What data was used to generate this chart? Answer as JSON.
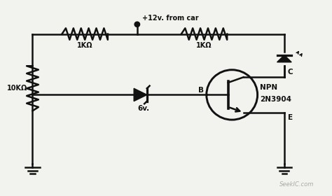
{
  "bg_color": "#f2f2ee",
  "line_color": "#111111",
  "line_width": 1.8,
  "resistor1_label": "1KΩ",
  "resistor2_label": "1KΩ",
  "resistor3_label": "10KΩ",
  "zener_label": "6v.",
  "transistor_label1": "NPN",
  "transistor_label2": "2N3904",
  "power_label": "+12v. from car",
  "node_C": "C",
  "node_B": "B",
  "node_E": "E",
  "seekic": "SeekIC.com"
}
